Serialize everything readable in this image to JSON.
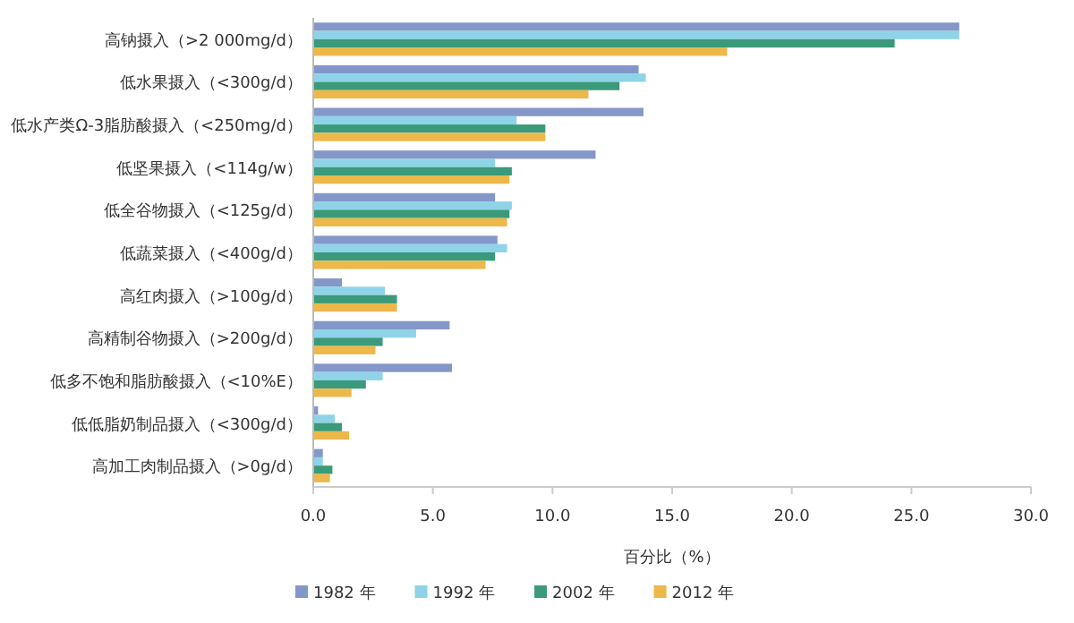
{
  "chart_data": {
    "type": "bar",
    "orientation": "horizontal",
    "xlabel": "百分比（%）",
    "categories": [
      "高钠摄入（>2 000mg/d）",
      "低水果摄入（<300g/d）",
      "低水产类Ω-3脂肪酸摄入（<250mg/d）",
      "低坚果摄入（<114g/w）",
      "低全谷物摄入（<125g/d）",
      "低蔬菜摄入（<400g/d）",
      "高红肉摄入（>100g/d）",
      "高精制谷物摄入（>200g/d）",
      "低多不饱和脂肪酸摄入（<10%E）",
      "低低脂奶制品摄入（<300g/d）",
      "高加工肉制品摄入（>0g/d）"
    ],
    "series": [
      {
        "name": "1982 年",
        "color": "#8497c9",
        "values": [
          27.0,
          13.6,
          13.8,
          11.8,
          7.6,
          7.7,
          1.2,
          5.7,
          5.8,
          0.2,
          0.4
        ]
      },
      {
        "name": "1992 年",
        "color": "#8fd3e8",
        "values": [
          27.0,
          13.9,
          8.5,
          7.6,
          8.3,
          8.1,
          3.0,
          4.3,
          2.9,
          0.9,
          0.4
        ]
      },
      {
        "name": "2002 年",
        "color": "#3a9a7a",
        "values": [
          24.3,
          12.8,
          9.7,
          8.3,
          8.2,
          7.6,
          3.5,
          2.9,
          2.2,
          1.2,
          0.8
        ]
      },
      {
        "name": "2012 年",
        "color": "#ecb84a",
        "values": [
          17.3,
          11.5,
          9.7,
          8.2,
          8.1,
          7.2,
          3.5,
          2.6,
          1.6,
          1.5,
          0.7
        ]
      }
    ],
    "xlim": [
      0,
      30
    ],
    "xticks": [
      {
        "value": 0,
        "label": "0.0"
      },
      {
        "value": 5,
        "label": "5.0"
      },
      {
        "value": 10,
        "label": "10.0"
      },
      {
        "value": 15,
        "label": "15.0"
      },
      {
        "value": 20,
        "label": "20.0"
      },
      {
        "value": 25,
        "label": "25.0"
      },
      {
        "value": 30,
        "label": "30.0"
      }
    ],
    "legend": "bottom",
    "grid": false
  }
}
